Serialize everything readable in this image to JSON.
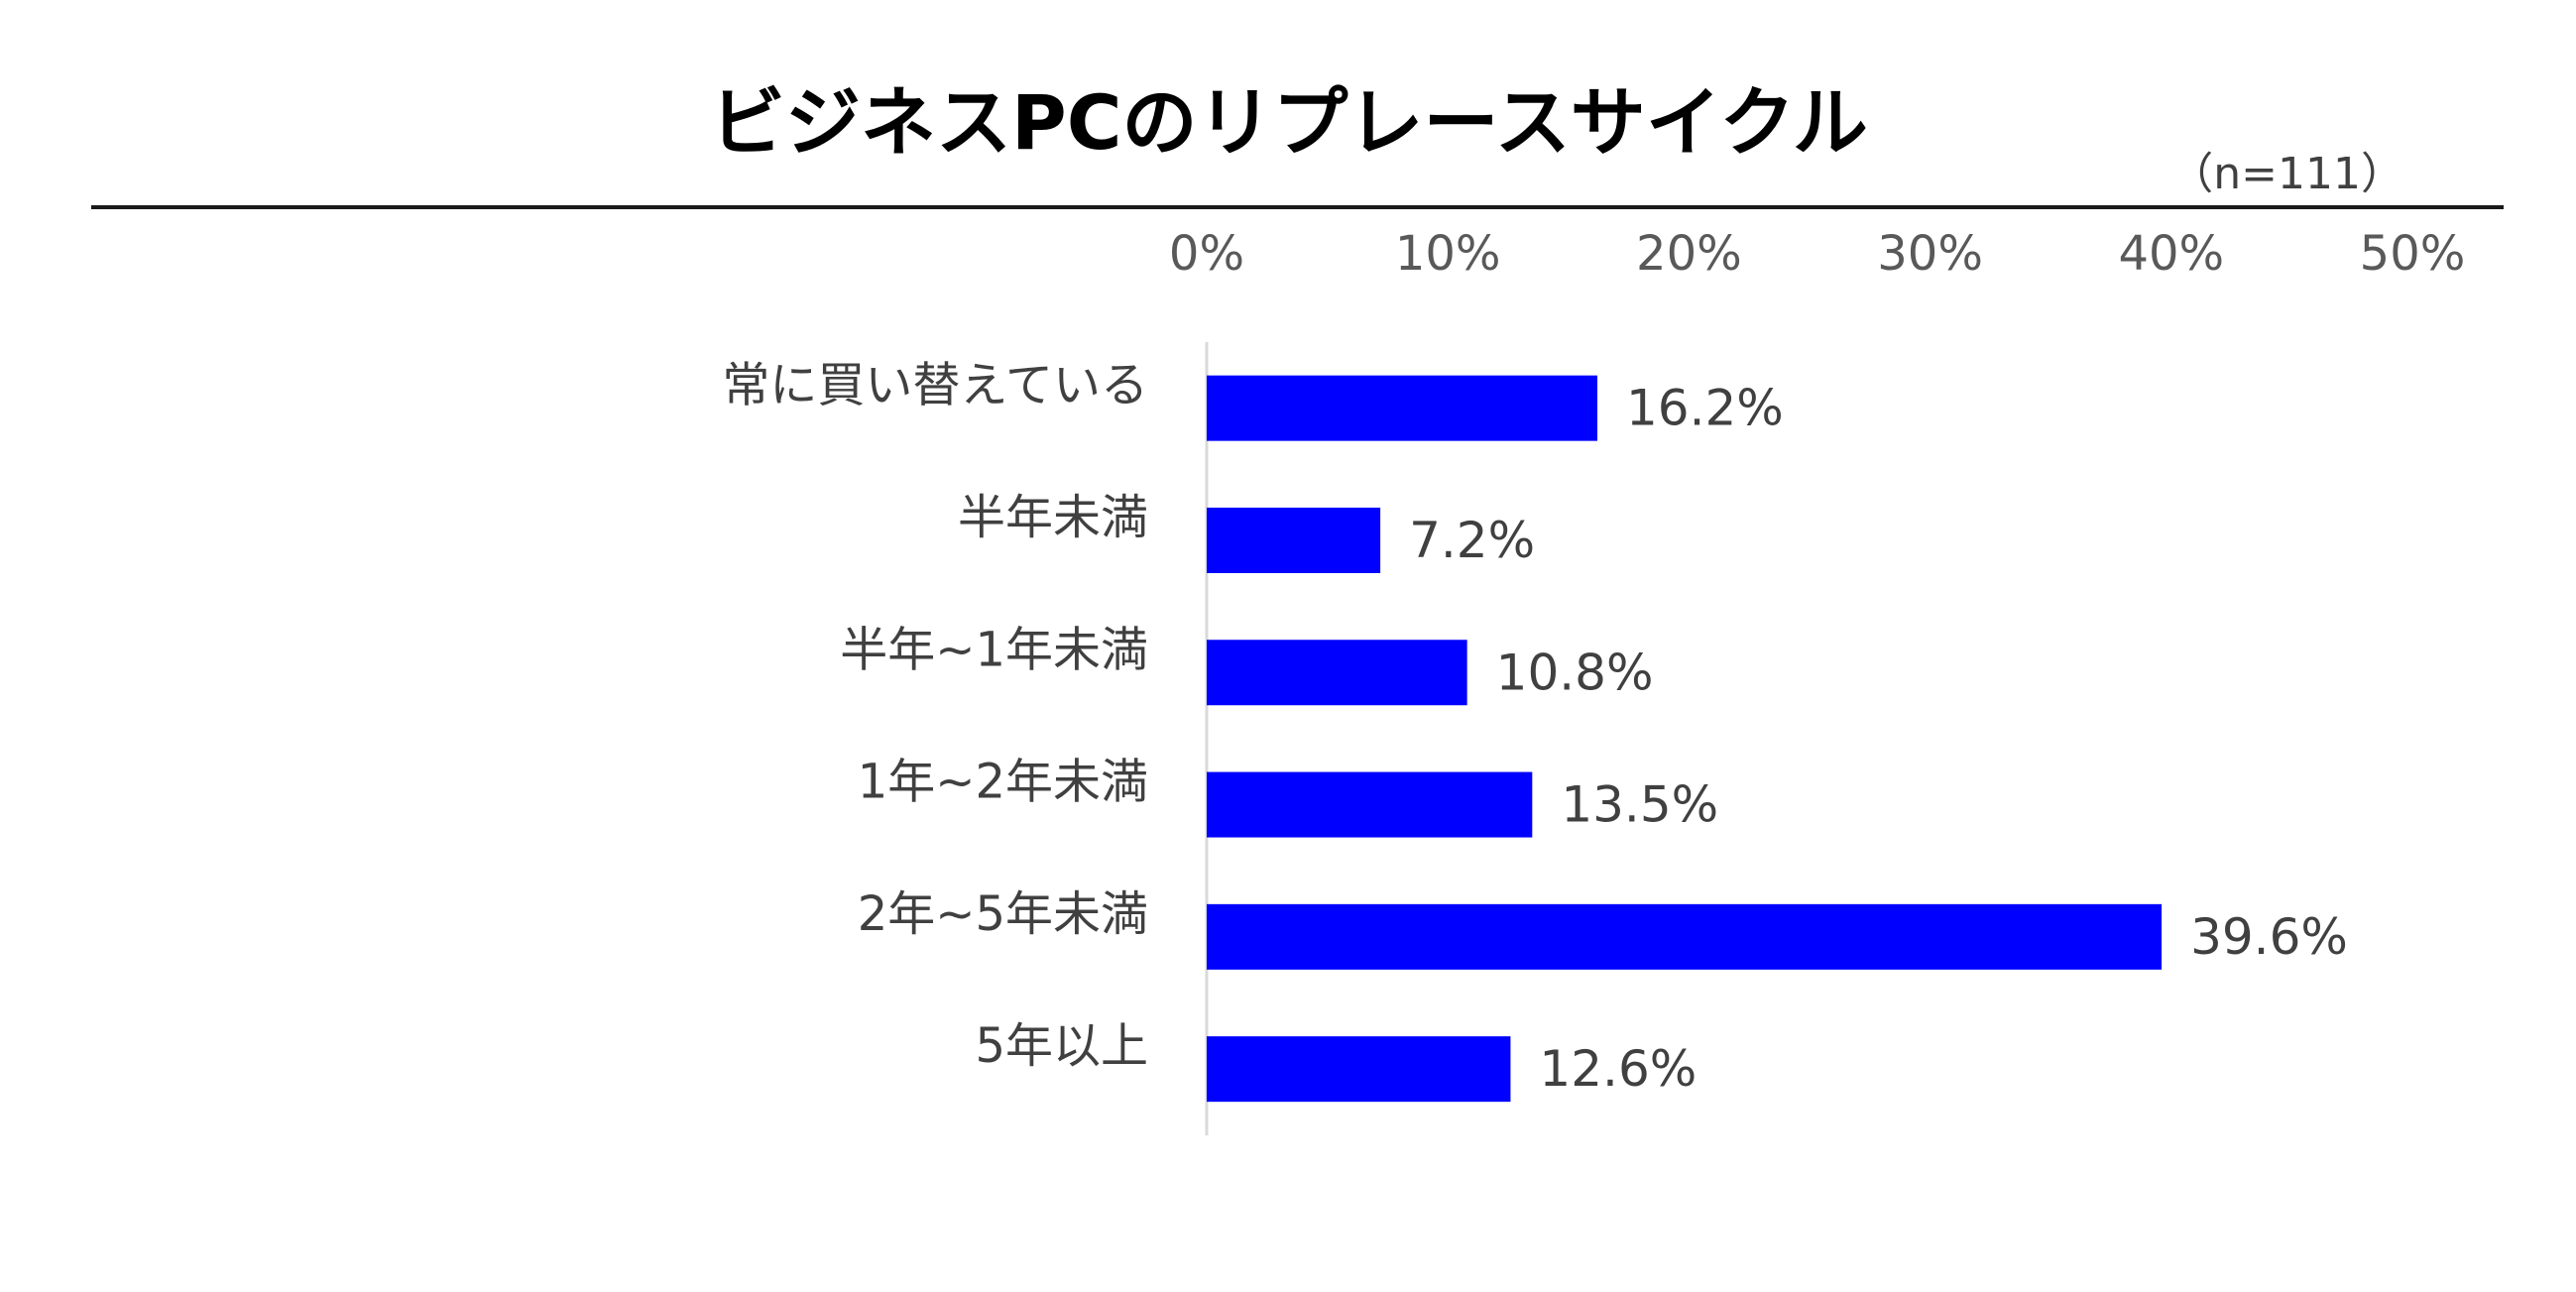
{
  "chart_data": {
    "type": "bar",
    "orientation": "horizontal",
    "title": "ビジネスPCのリプレースサイクル",
    "note": "（n=111）",
    "categories": [
      "常に買い替えている",
      "半年未満",
      "半年~1年未満",
      "1年~2年未満",
      "2年~5年未満",
      "5年以上"
    ],
    "values": [
      16.2,
      7.2,
      10.8,
      13.5,
      39.6,
      12.6
    ],
    "value_labels": [
      "16.2%",
      "7.2%",
      "10.8%",
      "13.5%",
      "39.6%",
      "12.6%"
    ],
    "xlim": [
      0,
      50
    ],
    "xticks": [
      0,
      10,
      20,
      30,
      40,
      50
    ],
    "xtick_labels": [
      "0%",
      "10%",
      "20%",
      "30%",
      "40%",
      "50%"
    ],
    "axis_position": "top",
    "grid": false,
    "colors": {
      "bar": "#0000FF",
      "title": "#000000",
      "text": "#404040",
      "axis_text": "#595959",
      "rule": "#1a1a1a",
      "baseline": "#d9d9d9"
    }
  }
}
